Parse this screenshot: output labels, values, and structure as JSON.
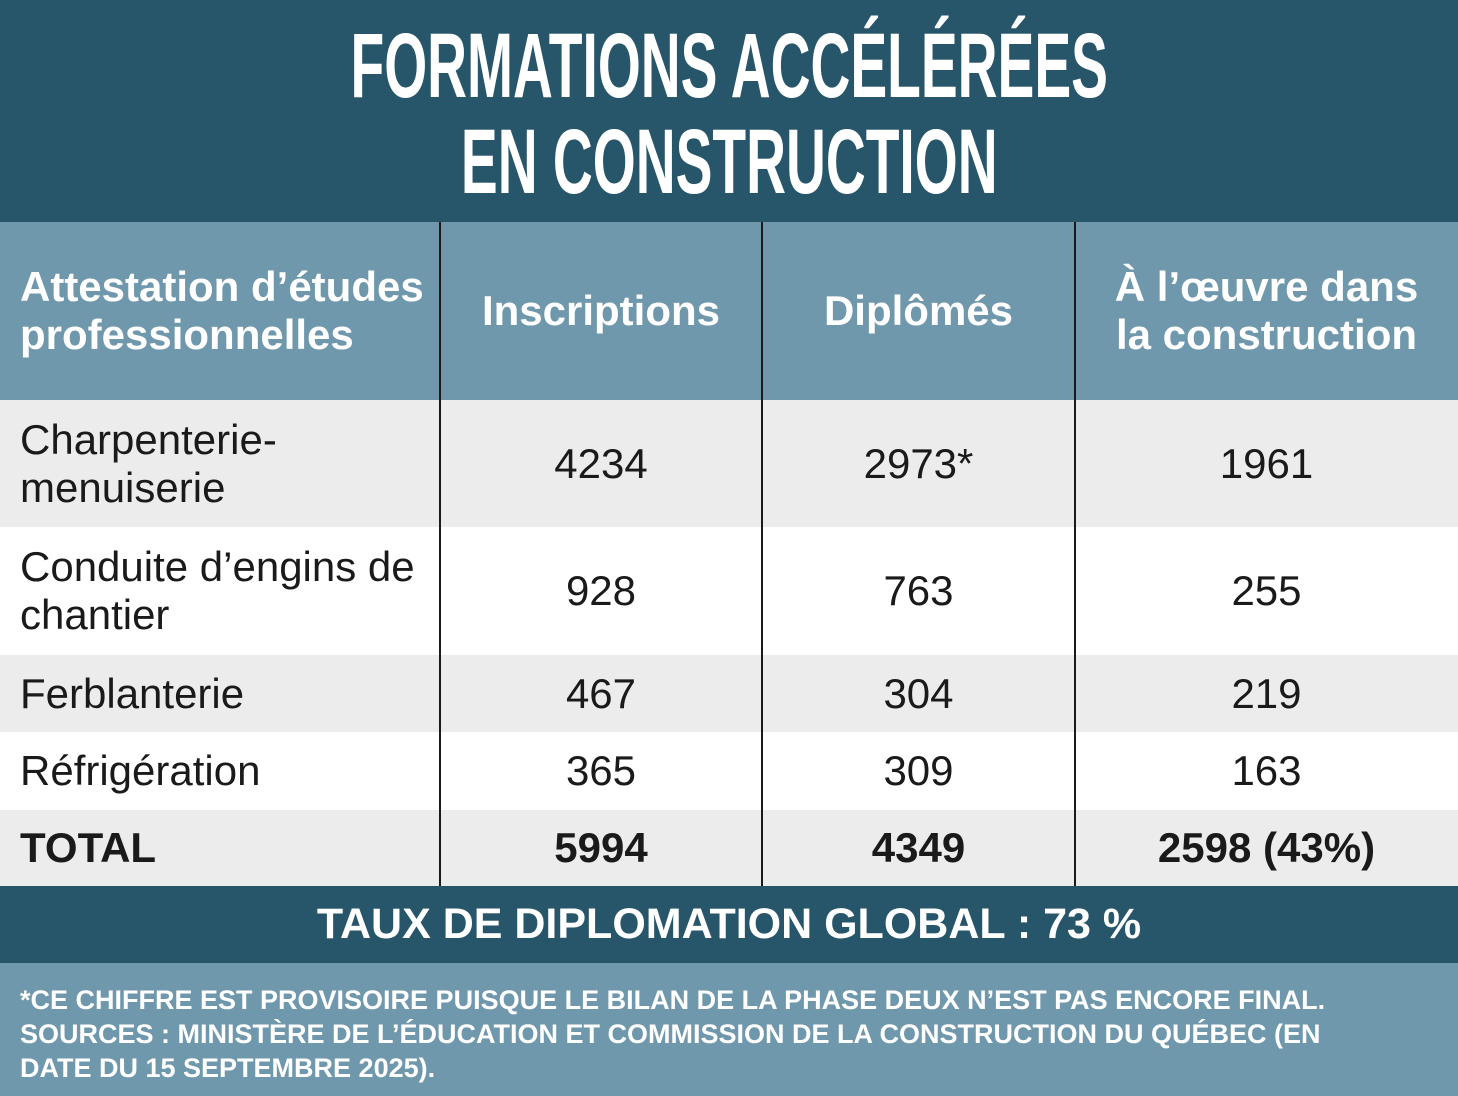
{
  "title": {
    "lines": [
      "FORMATIONS ACCÉLÉRÉES",
      "EN CONSTRUCTION"
    ]
  },
  "table": {
    "header": [
      "Attestation d’études professionnelles",
      "Inscriptions",
      "Diplômés",
      "À l’œuvre dans la construction"
    ],
    "rows": [
      [
        "Charpenterie-menuiserie",
        "4234",
        "2973*",
        "1961"
      ],
      [
        "Conduite d’engins de chantier",
        "928",
        "763",
        "255"
      ],
      [
        "Ferblanterie",
        "467",
        "304",
        "219"
      ],
      [
        "Réfrigération",
        "365",
        "309",
        "163"
      ]
    ],
    "total": [
      "TOTAL",
      "5994",
      "4349",
      "2598 (43%)"
    ]
  },
  "summary": "TAUX DE DIPLOMATION GLOBAL : 73 %",
  "note": "*CE CHIFFRE EST PROVISOIRE PUISQUE LE BILAN DE LA PHASE DEUX N’EST PAS ENCORE FINAL. SOURCES : MINISTÈRE DE L’ÉDUCATION ET COMMISSION DE LA CONSTRUCTION DU QUÉBEC (EN DATE DU 15 SEPTEMBRE 2025)."
}
